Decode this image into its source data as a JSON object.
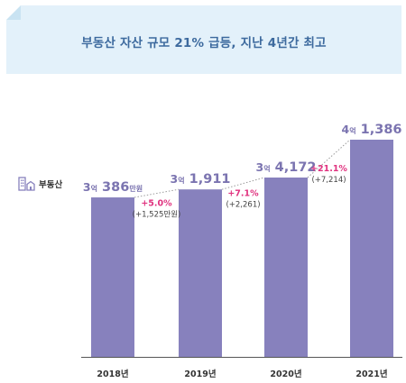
{
  "banner": {
    "title": "부동산 자산 규모 21% 급등, 지난 4년간 최고"
  },
  "legend": {
    "label": "부동산",
    "icon": "building-icon"
  },
  "chart_data": {
    "type": "bar",
    "title": "부동산 자산 규모 21% 급등, 지난 4년간 최고",
    "categories": [
      "2018년",
      "2019년",
      "2020년",
      "2021년"
    ],
    "series": [
      {
        "name": "부동산",
        "values": [
          30386,
          31911,
          34172,
          41386
        ]
      }
    ],
    "unit": "만원",
    "value_labels": [
      {
        "eok": "3",
        "eok_unit": "억",
        "rest": "386",
        "rest_unit": "만원"
      },
      {
        "eok": "3",
        "eok_unit": "억",
        "rest": "1,911",
        "rest_unit": ""
      },
      {
        "eok": "3",
        "eok_unit": "억",
        "rest": "4,172",
        "rest_unit": ""
      },
      {
        "eok": "4",
        "eok_unit": "억",
        "rest": "1,386",
        "rest_unit": ""
      }
    ],
    "changes": [
      {
        "pct": "+5.0%",
        "abs": "(+1,525만원)"
      },
      {
        "pct": "+7.1%",
        "abs": "(+2,261)"
      },
      {
        "pct": "+21.1%",
        "abs": "(+7,214)"
      }
    ],
    "ylim": [
      0,
      41386
    ],
    "grid": false,
    "legend_position": "left",
    "colors": {
      "bar": "#8781bd",
      "value": "#7b74b0",
      "change": "#e0327f",
      "banner": "#e3f1fa",
      "title": "#3d6a9e"
    }
  }
}
